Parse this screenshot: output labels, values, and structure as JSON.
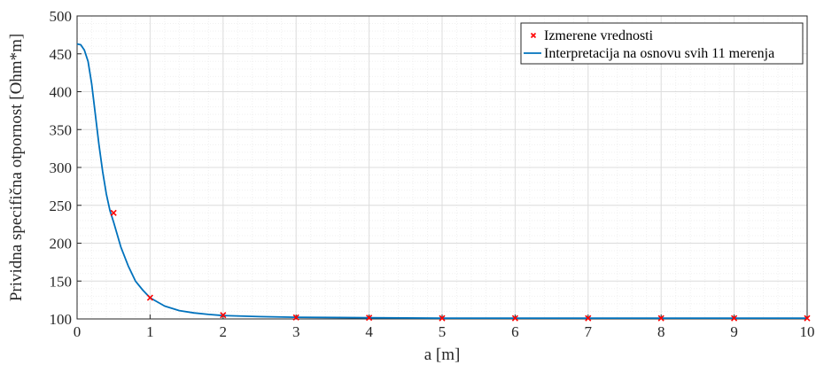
{
  "chart_data": {
    "type": "line",
    "title": "",
    "xlabel": "a [m]",
    "ylabel": "Prividna specifična otpornost [Ohm*m]",
    "xlim": [
      0,
      10
    ],
    "ylim": [
      100,
      500
    ],
    "xticks": [
      "0",
      "1",
      "2",
      "3",
      "4",
      "5",
      "6",
      "7",
      "8",
      "9",
      "10"
    ],
    "yticks": [
      "100",
      "150",
      "200",
      "250",
      "300",
      "350",
      "400",
      "450",
      "500"
    ],
    "grid": true,
    "minor_grid": true,
    "legend_position": "top-right",
    "series": [
      {
        "name": "Izmerene vrednosti",
        "kind": "scatter",
        "marker": "x",
        "color": "#ff0000",
        "x": [
          0.5,
          1,
          2,
          3,
          4,
          5,
          6,
          7,
          8,
          9,
          10
        ],
        "y": [
          240,
          128,
          105,
          102,
          101.5,
          101,
          101,
          101,
          101,
          101,
          101
        ]
      },
      {
        "name": "Interpretacija na osnovu svih 11 merenja",
        "kind": "line",
        "color": "#0072bd",
        "x": [
          0,
          0.05,
          0.1,
          0.15,
          0.2,
          0.25,
          0.3,
          0.35,
          0.4,
          0.45,
          0.5,
          0.6,
          0.7,
          0.8,
          0.9,
          1.0,
          1.2,
          1.4,
          1.6,
          1.8,
          2.0,
          2.5,
          3,
          4,
          5,
          6,
          7,
          8,
          9,
          10
        ],
        "y": [
          463,
          462,
          455,
          440,
          410,
          370,
          330,
          295,
          265,
          243,
          228,
          195,
          170,
          150,
          138,
          128,
          117,
          111,
          108,
          106,
          104.5,
          103,
          102.2,
          101.5,
          101,
          101,
          101,
          101,
          101,
          101
        ]
      }
    ]
  }
}
